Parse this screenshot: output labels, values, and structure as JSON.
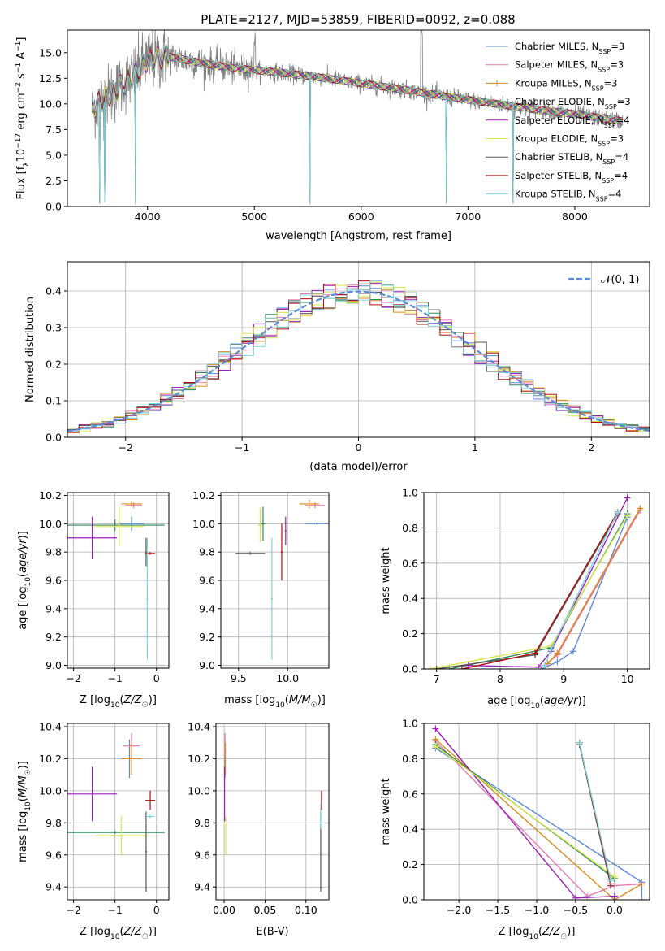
{
  "title": "PLATE=2127, MJD=53859, FIBERID=0092, z=0.088",
  "colors": {
    "chabrier_miles": "#5b8ad6",
    "salpeter_miles": "#e87ab5",
    "kroupa_miles": "#d98a1f",
    "chabrier_elodie": "#2e8b57",
    "salpeter_elodie": "#9b1fb8",
    "kroupa_elodie": "#d8e84a",
    "chabrier_stelib": "#555555",
    "salpeter_stelib": "#b01010",
    "kroupa_stelib": "#7fd4dc",
    "data_spectrum": "#808080",
    "normal_curve": "#5b8ad6"
  },
  "legend": {
    "spectrum": [
      {
        "key": "chabrier_miles",
        "pre": "Chabrier MILES, N",
        "sub": "SSP",
        "post": "=3"
      },
      {
        "key": "salpeter_miles",
        "pre": "Salpeter MILES, N",
        "sub": "SSP",
        "post": "=3"
      },
      {
        "key": "kroupa_miles",
        "pre": "Kroupa MILES, N",
        "sub": "SSP",
        "post": "=3"
      },
      {
        "key": "chabrier_elodie",
        "pre": "Chabrier ELODIE, N",
        "sub": "SSP",
        "post": "=3"
      },
      {
        "key": "salpeter_elodie",
        "pre": "Salpeter ELODIE, N",
        "sub": "SSP",
        "post": "=4"
      },
      {
        "key": "kroupa_elodie",
        "pre": "Kroupa ELODIE, N",
        "sub": "SSP",
        "post": "=3"
      },
      {
        "key": "chabrier_stelib",
        "pre": "Chabrier STELIB, N",
        "sub": "SSP",
        "post": "=4"
      },
      {
        "key": "salpeter_stelib",
        "pre": "Salpeter STELIB, N",
        "sub": "SSP",
        "post": "=4"
      },
      {
        "key": "kroupa_stelib",
        "pre": "Kroupa STELIB, N",
        "sub": "SSP",
        "post": "=4"
      }
    ],
    "residual": "𝒩(0, 1)"
  },
  "chart_data": [
    {
      "id": "spectrum",
      "type": "line",
      "xlabel": "wavelength [Angstrom, rest frame]",
      "ylabel": "Flux [f_λ 10^-17 erg cm^-2 s^-1 A^-1]",
      "xlim": [
        3250,
        8700
      ],
      "ylim": [
        0,
        17.2
      ],
      "xticks": [
        4000,
        5000,
        6000,
        7000,
        8000
      ],
      "yticks": [
        0.0,
        2.5,
        5.0,
        7.5,
        10.0,
        12.5,
        15.0
      ],
      "x_range_data": [
        3480,
        8450
      ],
      "continuum_knots": [
        [
          3480,
          9.6
        ],
        [
          3700,
          11.3
        ],
        [
          3900,
          13.0
        ],
        [
          4000,
          14.3
        ],
        [
          4200,
          14.6
        ],
        [
          4500,
          14.0
        ],
        [
          4800,
          13.5
        ],
        [
          5200,
          13.1
        ],
        [
          5600,
          12.6
        ],
        [
          6000,
          12.0
        ],
        [
          6400,
          11.4
        ],
        [
          6800,
          10.7
        ],
        [
          7200,
          10.1
        ],
        [
          7600,
          9.5
        ],
        [
          8000,
          9.0
        ],
        [
          8450,
          8.3
        ]
      ],
      "absorption_spikes": [
        [
          3550,
          0.3
        ],
        [
          3600,
          0.4
        ],
        [
          3890,
          0.2
        ],
        [
          5520,
          0.2
        ],
        [
          6800,
          0.3
        ],
        [
          7420,
          0.3
        ]
      ]
    },
    {
      "id": "residuals",
      "type": "step",
      "xlabel": "(data-model)/error",
      "ylabel": "Normed distribution",
      "xlim": [
        -2.5,
        2.5
      ],
      "ylim": [
        0,
        0.48
      ],
      "xticks": [
        -2,
        -1,
        0,
        1,
        2
      ],
      "yticks": [
        0.0,
        0.1,
        0.2,
        0.3,
        0.4
      ],
      "bin_width": 0.1,
      "normal": {
        "mu": 0,
        "sigma": 1
      }
    },
    {
      "id": "age_vs_Z",
      "type": "errorbar",
      "xlabel": "Z [log10(Z/Z☉)]",
      "ylabel": "age [log10(age/yr)]",
      "xlim": [
        -2.15,
        0.3
      ],
      "ylim": [
        8.98,
        10.22
      ],
      "xticks": [
        -2,
        -1,
        0
      ],
      "yticks": [
        9.0,
        9.2,
        9.4,
        9.6,
        9.8,
        10.0,
        10.2
      ],
      "points": [
        {
          "key": "chabrier_miles",
          "x": -0.6,
          "xerr": 0.3,
          "y": 10.0,
          "yerr": 0.05
        },
        {
          "key": "salpeter_miles",
          "x": -0.55,
          "xerr": 0.2,
          "y": 10.13,
          "yerr": 0.02
        },
        {
          "key": "kroupa_miles",
          "x": -0.6,
          "xerr": 0.25,
          "y": 10.14,
          "yerr": 0.02
        },
        {
          "key": "chabrier_elodie",
          "x": -1.0,
          "xerr": 1.2,
          "y": 9.99,
          "yerr": 0.04
        },
        {
          "key": "salpeter_elodie",
          "x": -1.55,
          "xerr": 0.6,
          "y": 9.9,
          "yerr": 0.15
        },
        {
          "key": "kroupa_elodie",
          "x": -0.9,
          "xerr": 0.6,
          "y": 9.98,
          "yerr": 0.14
        },
        {
          "key": "chabrier_stelib",
          "x": -0.25,
          "xerr": 0.02,
          "y": 9.8,
          "yerr": 0.1
        },
        {
          "key": "salpeter_stelib",
          "x": -0.15,
          "xerr": 0.12,
          "y": 9.79,
          "yerr": 0.01
        },
        {
          "key": "kroupa_stelib",
          "x": -0.22,
          "xerr": 0.02,
          "y": 9.47,
          "yerr": 0.43
        }
      ]
    },
    {
      "id": "age_vs_mass",
      "type": "errorbar",
      "xlabel": "mass [log10(M/M☉)]",
      "ylabel": "",
      "xlim": [
        9.32,
        10.42
      ],
      "ylim": [
        8.98,
        10.22
      ],
      "xticks": [
        9.5,
        10.0
      ],
      "yticks": [
        9.0,
        9.2,
        9.4,
        9.6,
        9.8,
        10.0,
        10.2
      ],
      "points": [
        {
          "key": "chabrier_miles",
          "x": 10.3,
          "xerr": 0.12,
          "y": 10.0,
          "yerr": 0.01
        },
        {
          "key": "salpeter_miles",
          "x": 10.28,
          "xerr": 0.1,
          "y": 10.13,
          "yerr": 0.02
        },
        {
          "key": "kroupa_miles",
          "x": 10.22,
          "xerr": 0.1,
          "y": 10.14,
          "yerr": 0.03
        },
        {
          "key": "chabrier_elodie",
          "x": 9.75,
          "xerr": 0.02,
          "y": 10.0,
          "yerr": 0.12
        },
        {
          "key": "salpeter_elodie",
          "x": 9.98,
          "xerr": 0.01,
          "y": 9.95,
          "yerr": 0.1
        },
        {
          "key": "kroupa_elodie",
          "x": 9.72,
          "xerr": 0.02,
          "y": 9.99,
          "yerr": 0.12
        },
        {
          "key": "chabrier_stelib",
          "x": 9.62,
          "xerr": 0.15,
          "y": 9.79,
          "yerr": 0.01
        },
        {
          "key": "salpeter_stelib",
          "x": 9.94,
          "xerr": 0.01,
          "y": 9.8,
          "yerr": 0.2
        },
        {
          "key": "kroupa_stelib",
          "x": 9.84,
          "xerr": 0.01,
          "y": 9.47,
          "yerr": 0.43
        }
      ]
    },
    {
      "id": "weight_vs_age",
      "type": "line",
      "xlabel": "age [log10(age/yr)]",
      "ylabel": "mass weight",
      "xlim": [
        6.8,
        10.35
      ],
      "ylim": [
        0,
        1.0
      ],
      "xticks": [
        7,
        8,
        9,
        10
      ],
      "yticks": [
        0.0,
        0.2,
        0.4,
        0.6,
        0.8,
        1.0
      ],
      "series": [
        {
          "key": "chabrier_miles",
          "points": [
            [
              8.65,
              0.0
            ],
            [
              8.9,
              0.04
            ],
            [
              9.15,
              0.1
            ],
            [
              10.0,
              0.86
            ]
          ]
        },
        {
          "key": "salpeter_miles",
          "points": [
            [
              8.7,
              0.02
            ],
            [
              8.9,
              0.08
            ],
            [
              10.2,
              0.9
            ]
          ]
        },
        {
          "key": "kroupa_miles",
          "points": [
            [
              8.75,
              0.03
            ],
            [
              8.9,
              0.09
            ],
            [
              10.2,
              0.91
            ]
          ]
        },
        {
          "key": "chabrier_elodie",
          "points": [
            [
              7.2,
              0.0
            ],
            [
              8.8,
              0.12
            ],
            [
              10.0,
              0.88
            ]
          ]
        },
        {
          "key": "salpeter_elodie",
          "points": [
            [
              7.5,
              0.02
            ],
            [
              8.6,
              0.01
            ],
            [
              8.8,
              0.1
            ],
            [
              10.0,
              0.97
            ]
          ]
        },
        {
          "key": "kroupa_elodie",
          "points": [
            [
              6.9,
              0.0
            ],
            [
              8.8,
              0.13
            ],
            [
              10.0,
              0.87
            ]
          ]
        },
        {
          "key": "chabrier_stelib",
          "points": [
            [
              7.0,
              0.0
            ],
            [
              8.55,
              0.08
            ],
            [
              9.85,
              0.88
            ]
          ]
        },
        {
          "key": "salpeter_stelib",
          "points": [
            [
              7.4,
              0.0
            ],
            [
              8.55,
              0.09
            ],
            [
              9.85,
              0.89
            ]
          ]
        },
        {
          "key": "kroupa_stelib",
          "points": [
            [
              8.7,
              0.02
            ],
            [
              8.8,
              0.11
            ],
            [
              9.85,
              0.89
            ]
          ]
        }
      ]
    },
    {
      "id": "mass_vs_Z",
      "type": "errorbar",
      "xlabel": "Z [log10(Z/Z☉)]",
      "ylabel": "mass [log10(M/M☉)]",
      "xlim": [
        -2.15,
        0.3
      ],
      "ylim": [
        9.32,
        10.42
      ],
      "xticks": [
        -2,
        -1,
        0
      ],
      "yticks": [
        9.4,
        9.6,
        9.8,
        10.0,
        10.2,
        10.4
      ],
      "points": [
        {
          "key": "chabrier_miles",
          "x": -0.65,
          "xerr": 0.05,
          "y": 10.2,
          "yerr": 0.12
        },
        {
          "key": "salpeter_miles",
          "x": -0.6,
          "xerr": 0.2,
          "y": 10.28,
          "yerr": 0.08
        },
        {
          "key": "kroupa_miles",
          "x": -0.6,
          "xerr": 0.25,
          "y": 10.2,
          "yerr": 0.1
        },
        {
          "key": "chabrier_elodie",
          "x": -1.0,
          "xerr": 1.2,
          "y": 9.74,
          "yerr": 0.01
        },
        {
          "key": "salpeter_elodie",
          "x": -1.55,
          "xerr": 0.6,
          "y": 9.98,
          "yerr": 0.17
        },
        {
          "key": "kroupa_elodie",
          "x": -0.85,
          "xerr": 0.6,
          "y": 9.72,
          "yerr": 0.12
        },
        {
          "key": "chabrier_stelib",
          "x": -0.25,
          "xerr": 0.02,
          "y": 9.62,
          "yerr": 0.25
        },
        {
          "key": "salpeter_stelib",
          "x": -0.15,
          "xerr": 0.12,
          "y": 9.94,
          "yerr": 0.06
        },
        {
          "key": "kroupa_stelib",
          "x": -0.15,
          "xerr": 0.1,
          "y": 9.84,
          "yerr": 0.01
        }
      ]
    },
    {
      "id": "mass_vs_ebv",
      "type": "errorbar",
      "xlabel": "E(B-V)",
      "ylabel": "",
      "xlim": [
        -0.01,
        0.128
      ],
      "ylim": [
        9.32,
        10.42
      ],
      "xticks": [
        0.0,
        0.05,
        0.1
      ],
      "xticklabels": [
        "0.00",
        "0.05",
        "0.10"
      ],
      "yticks": [
        9.4,
        9.6,
        9.8,
        10.0,
        10.2,
        10.4
      ],
      "points": [
        {
          "key": "chabrier_miles",
          "x": 0.001,
          "xerr": 0,
          "y": 10.2,
          "yerr": 0.12
        },
        {
          "key": "salpeter_miles",
          "x": 0.001,
          "xerr": 0,
          "y": 10.28,
          "yerr": 0.08
        },
        {
          "key": "kroupa_miles",
          "x": 0.0015,
          "xerr": 0,
          "y": 10.2,
          "yerr": 0.1
        },
        {
          "key": "salpeter_elodie",
          "x": 0.0005,
          "xerr": 0,
          "y": 9.98,
          "yerr": 0.17
        },
        {
          "key": "kroupa_elodie",
          "x": 0.002,
          "xerr": 0,
          "y": 9.72,
          "yerr": 0.12
        },
        {
          "key": "chabrier_stelib",
          "x": 0.118,
          "xerr": 0,
          "y": 9.62,
          "yerr": 0.25
        },
        {
          "key": "salpeter_stelib",
          "x": 0.119,
          "xerr": 0,
          "y": 9.94,
          "yerr": 0.06
        },
        {
          "key": "kroupa_stelib",
          "x": 0.118,
          "xerr": 0,
          "y": 9.84,
          "yerr": 0.08
        }
      ]
    },
    {
      "id": "weight_vs_Z",
      "type": "line",
      "xlabel": "Z [log10(Z/Z☉)]",
      "ylabel": "mass weight",
      "xlim": [
        -2.45,
        0.45
      ],
      "ylim": [
        0,
        1.0
      ],
      "xticks": [
        -2.0,
        -1.5,
        -1.0,
        -0.5,
        0.0
      ],
      "xticklabels": [
        "−2.0",
        "−1.5",
        "−1.0",
        "−0.5",
        "0.0"
      ],
      "yticks": [
        0.0,
        0.2,
        0.4,
        0.6,
        0.8,
        1.0
      ],
      "series": [
        {
          "key": "chabrier_miles",
          "points": [
            [
              -2.3,
              0.86
            ],
            [
              0.35,
              0.1
            ],
            [
              0.35,
              0.0
            ]
          ]
        },
        {
          "key": "salpeter_miles",
          "points": [
            [
              -2.3,
              0.9
            ],
            [
              -0.35,
              0.02
            ],
            [
              0.0,
              0.08
            ],
            [
              0.35,
              0.09
            ]
          ]
        },
        {
          "key": "kroupa_miles",
          "points": [
            [
              -2.3,
              0.91
            ],
            [
              0.0,
              0.0
            ],
            [
              0.35,
              0.09
            ]
          ]
        },
        {
          "key": "chabrier_elodie",
          "points": [
            [
              -2.3,
              0.88
            ],
            [
              0.0,
              0.12
            ]
          ]
        },
        {
          "key": "salpeter_elodie",
          "points": [
            [
              -2.3,
              0.97
            ],
            [
              -0.5,
              0.01
            ],
            [
              0.0,
              0.02
            ]
          ]
        },
        {
          "key": "kroupa_elodie",
          "points": [
            [
              -2.3,
              0.87
            ],
            [
              0.0,
              0.13
            ]
          ]
        },
        {
          "key": "chabrier_stelib",
          "points": [
            [
              -0.45,
              0.88
            ],
            [
              -0.05,
              0.08
            ]
          ]
        },
        {
          "key": "salpeter_stelib",
          "points": [
            [
              -0.45,
              0.89
            ],
            [
              -0.05,
              0.09
            ]
          ]
        },
        {
          "key": "kroupa_stelib",
          "points": [
            [
              -0.45,
              0.89
            ],
            [
              -0.05,
              0.11
            ]
          ]
        }
      ]
    }
  ]
}
